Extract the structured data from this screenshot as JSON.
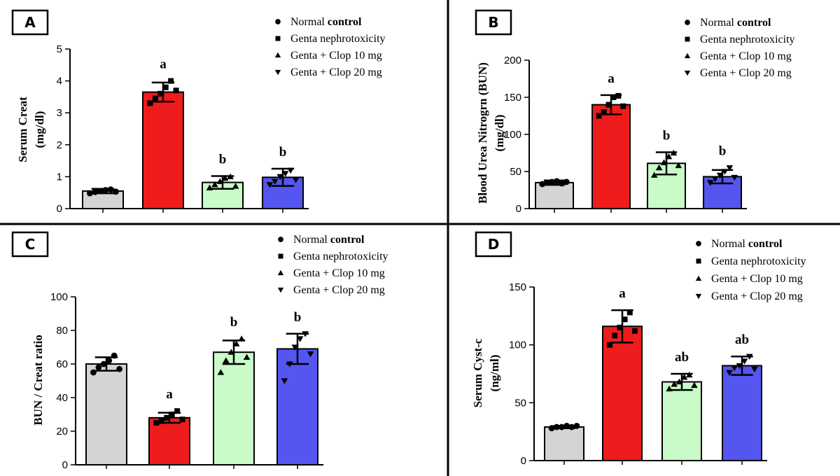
{
  "legend": {
    "entries": [
      {
        "text": "Normal ",
        "bold": "control",
        "marker": "circle"
      },
      {
        "text": "Genta nephrotoxicity",
        "bold": "",
        "marker": "square"
      },
      {
        "text": "Genta + Clop 10 mg",
        "bold": "",
        "marker": "triangle-up"
      },
      {
        "text": "Genta + Clop 20 mg",
        "bold": "",
        "marker": "triangle-down"
      }
    ]
  },
  "colors": {
    "Normal control": "#d4d4d4",
    "Genta nephrotoxicity": "#ee1c1c",
    "Genta + Clop 10 mg": "#c8fbc8",
    "Genta + Clop 20 mg": "#5555f0"
  },
  "chart_data": [
    {
      "panel": "A",
      "type": "bar",
      "categories": [
        "Normal control",
        "Genta nephrotoxicity",
        "Genta + Clop 10 mg",
        "Genta + Clop 20 mg"
      ],
      "values": [
        0.55,
        3.65,
        0.82,
        0.98
      ],
      "errors": [
        0.07,
        0.3,
        0.2,
        0.27
      ],
      "points": [
        [
          0.48,
          0.52,
          0.55,
          0.58,
          0.6,
          0.53
        ],
        [
          3.3,
          3.45,
          3.6,
          3.8,
          4.0,
          3.7
        ],
        [
          0.65,
          0.75,
          0.85,
          0.95,
          1.0,
          0.7
        ],
        [
          0.75,
          0.85,
          1.0,
          1.1,
          1.2,
          0.9
        ]
      ],
      "markers": [
        "circle",
        "square",
        "triangle-up",
        "triangle-down"
      ],
      "significance": [
        "",
        "a",
        "b",
        "b"
      ],
      "ylabel": [
        "Serum Creat",
        "(mg/dl)"
      ],
      "ylim": [
        0,
        5
      ],
      "yticks": [
        0,
        1,
        2,
        3,
        4,
        5
      ]
    },
    {
      "panel": "B",
      "type": "bar",
      "categories": [
        "Normal control",
        "Genta nephrotoxicity",
        "Genta + Clop 10 mg",
        "Genta + Clop 20 mg"
      ],
      "values": [
        35,
        140,
        61,
        43
      ],
      "errors": [
        3,
        13,
        15,
        9
      ],
      "points": [
        [
          33,
          35,
          36,
          37,
          34,
          36
        ],
        [
          125,
          130,
          140,
          150,
          152,
          138
        ],
        [
          45,
          55,
          62,
          70,
          75,
          58
        ],
        [
          35,
          40,
          45,
          50,
          55,
          42
        ]
      ],
      "markers": [
        "circle",
        "square",
        "triangle-up",
        "triangle-down"
      ],
      "significance": [
        "",
        "a",
        "b",
        "b"
      ],
      "ylabel": [
        "Blood Urea Nitrogrn (BUN)",
        "(mg/dl)"
      ],
      "ylim": [
        0,
        200
      ],
      "yticks": [
        0,
        50,
        100,
        150,
        200
      ]
    },
    {
      "panel": "C",
      "type": "bar",
      "categories": [
        "Normal control",
        "Genta nephrotoxicity",
        "Genta + Clop 10 mg",
        "Genta + Clop 20 mg"
      ],
      "values": [
        60,
        28,
        67,
        69
      ],
      "errors": [
        4,
        3,
        7,
        9
      ],
      "points": [
        [
          55,
          58,
          60,
          62,
          65,
          57
        ],
        [
          25,
          26,
          28,
          30,
          32,
          27
        ],
        [
          55,
          62,
          67,
          72,
          75,
          64
        ],
        [
          50,
          60,
          70,
          75,
          78,
          66
        ]
      ],
      "markers": [
        "circle",
        "square",
        "triangle-up",
        "triangle-down"
      ],
      "significance": [
        "",
        "a",
        "b",
        "b"
      ],
      "ylabel": [
        "BUN / Creat ratio"
      ],
      "ylim": [
        0,
        100
      ],
      "yticks": [
        0,
        20,
        40,
        60,
        80,
        100
      ]
    },
    {
      "panel": "D",
      "type": "bar",
      "categories": [
        "Normal control",
        "Genta nephrotoxicity",
        "Genta + Clop 10 mg",
        "Genta + Clop 20 mg"
      ],
      "values": [
        29,
        116,
        68,
        82
      ],
      "errors": [
        1,
        14,
        7,
        8
      ],
      "points": [
        [
          28,
          29,
          29,
          30,
          29,
          30
        ],
        [
          100,
          108,
          115,
          122,
          128,
          112
        ],
        [
          62,
          66,
          68,
          72,
          74,
          65
        ],
        [
          76,
          80,
          82,
          86,
          90,
          79
        ]
      ],
      "markers": [
        "circle",
        "square",
        "triangle-up",
        "triangle-down"
      ],
      "significance": [
        "",
        "a",
        "ab",
        "ab"
      ],
      "ylabel": [
        "Serum Cyst-c",
        "(ng/ml)"
      ],
      "ylim": [
        0,
        150
      ],
      "yticks": [
        0,
        50,
        100,
        150
      ]
    }
  ]
}
